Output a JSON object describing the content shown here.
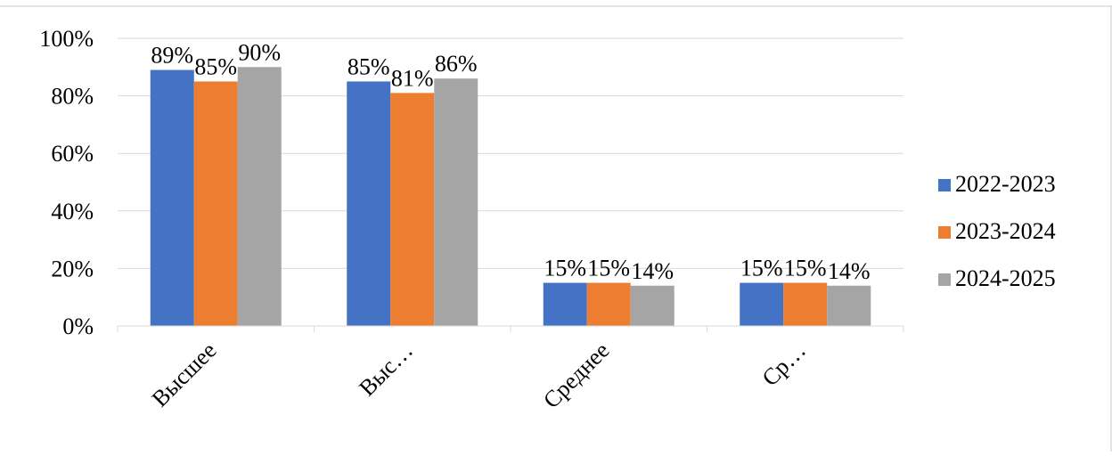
{
  "chart_data": {
    "type": "bar",
    "title": "",
    "xlabel": "",
    "ylabel": "",
    "categories": [
      "Высшее",
      "Выс…",
      "Среднее",
      "Ср…"
    ],
    "series": [
      {
        "name": "2022-2023",
        "color": "#4472c4",
        "values": [
          0.89,
          0.85,
          0.15,
          0.15
        ],
        "labels": [
          "89%",
          "85%",
          "15%",
          "15%"
        ]
      },
      {
        "name": "2023-2024",
        "color": "#ed7d31",
        "values": [
          0.85,
          0.81,
          0.15,
          0.15
        ],
        "labels": [
          "85%",
          "81%",
          "15%",
          "15%"
        ]
      },
      {
        "name": "2024-2025",
        "color": "#a5a5a5",
        "values": [
          0.9,
          0.86,
          0.14,
          0.14
        ],
        "labels": [
          "90%",
          "86%",
          "14%",
          "14%"
        ]
      }
    ],
    "yticks": [
      0,
      0.2,
      0.4,
      0.6,
      0.8,
      1.0
    ],
    "ytick_labels": [
      "0%",
      "20%",
      "40%",
      "60%",
      "80%",
      "100%"
    ],
    "ylim": [
      0,
      1
    ],
    "grid": true,
    "legend_position": "right"
  }
}
